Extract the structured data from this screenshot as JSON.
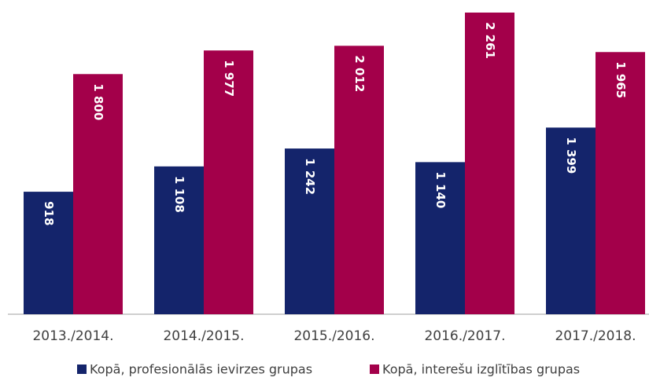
{
  "chart_data": {
    "type": "bar",
    "categories": [
      "2013./2014.",
      "2014./2015.",
      "2015./2016.",
      "2016./2017.",
      "2017./2018."
    ],
    "series": [
      {
        "name": "Kopā, profesionālās ievirzes grupas",
        "color": "#14246b",
        "values": [
          918,
          1108,
          1242,
          1140,
          1399
        ],
        "value_labels": [
          "918",
          "1 108",
          "1 242",
          "1 140",
          "1 399"
        ]
      },
      {
        "name": "Kopā, interešu izglītības grupas",
        "color": "#a3004a",
        "values": [
          1800,
          1977,
          2012,
          2261,
          1965
        ],
        "value_labels": [
          "1 800",
          "1 977",
          "2 012",
          "2 261",
          "1 965"
        ]
      }
    ]
  }
}
